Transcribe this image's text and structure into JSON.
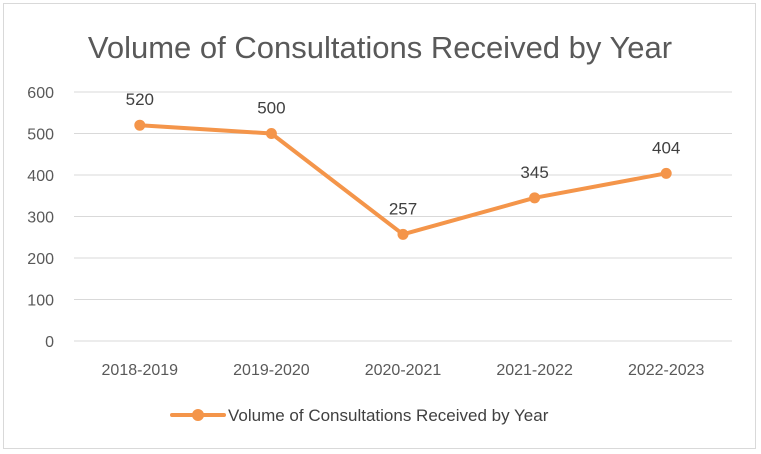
{
  "chart_data": {
    "type": "line",
    "title": "Volume of Consultations Received by Year",
    "categories": [
      "2018-2019",
      "2019-2020",
      "2020-2021",
      "2021-2022",
      "2022-2023"
    ],
    "series": [
      {
        "name": "Volume of Consultations Received by Year",
        "values": [
          520,
          500,
          257,
          345,
          404
        ],
        "color": "#f4954a"
      }
    ],
    "ylim": [
      0,
      600
    ],
    "yticks": [
      0,
      100,
      200,
      300,
      400,
      500,
      600
    ],
    "ytick_labels": [
      "0",
      "100",
      "200",
      "300",
      "400",
      "500",
      "600"
    ],
    "data_labels": [
      "520",
      "500",
      "257",
      "345",
      "404"
    ],
    "grid": true,
    "legend_position": "bottom",
    "xlabel": "",
    "ylabel": ""
  }
}
